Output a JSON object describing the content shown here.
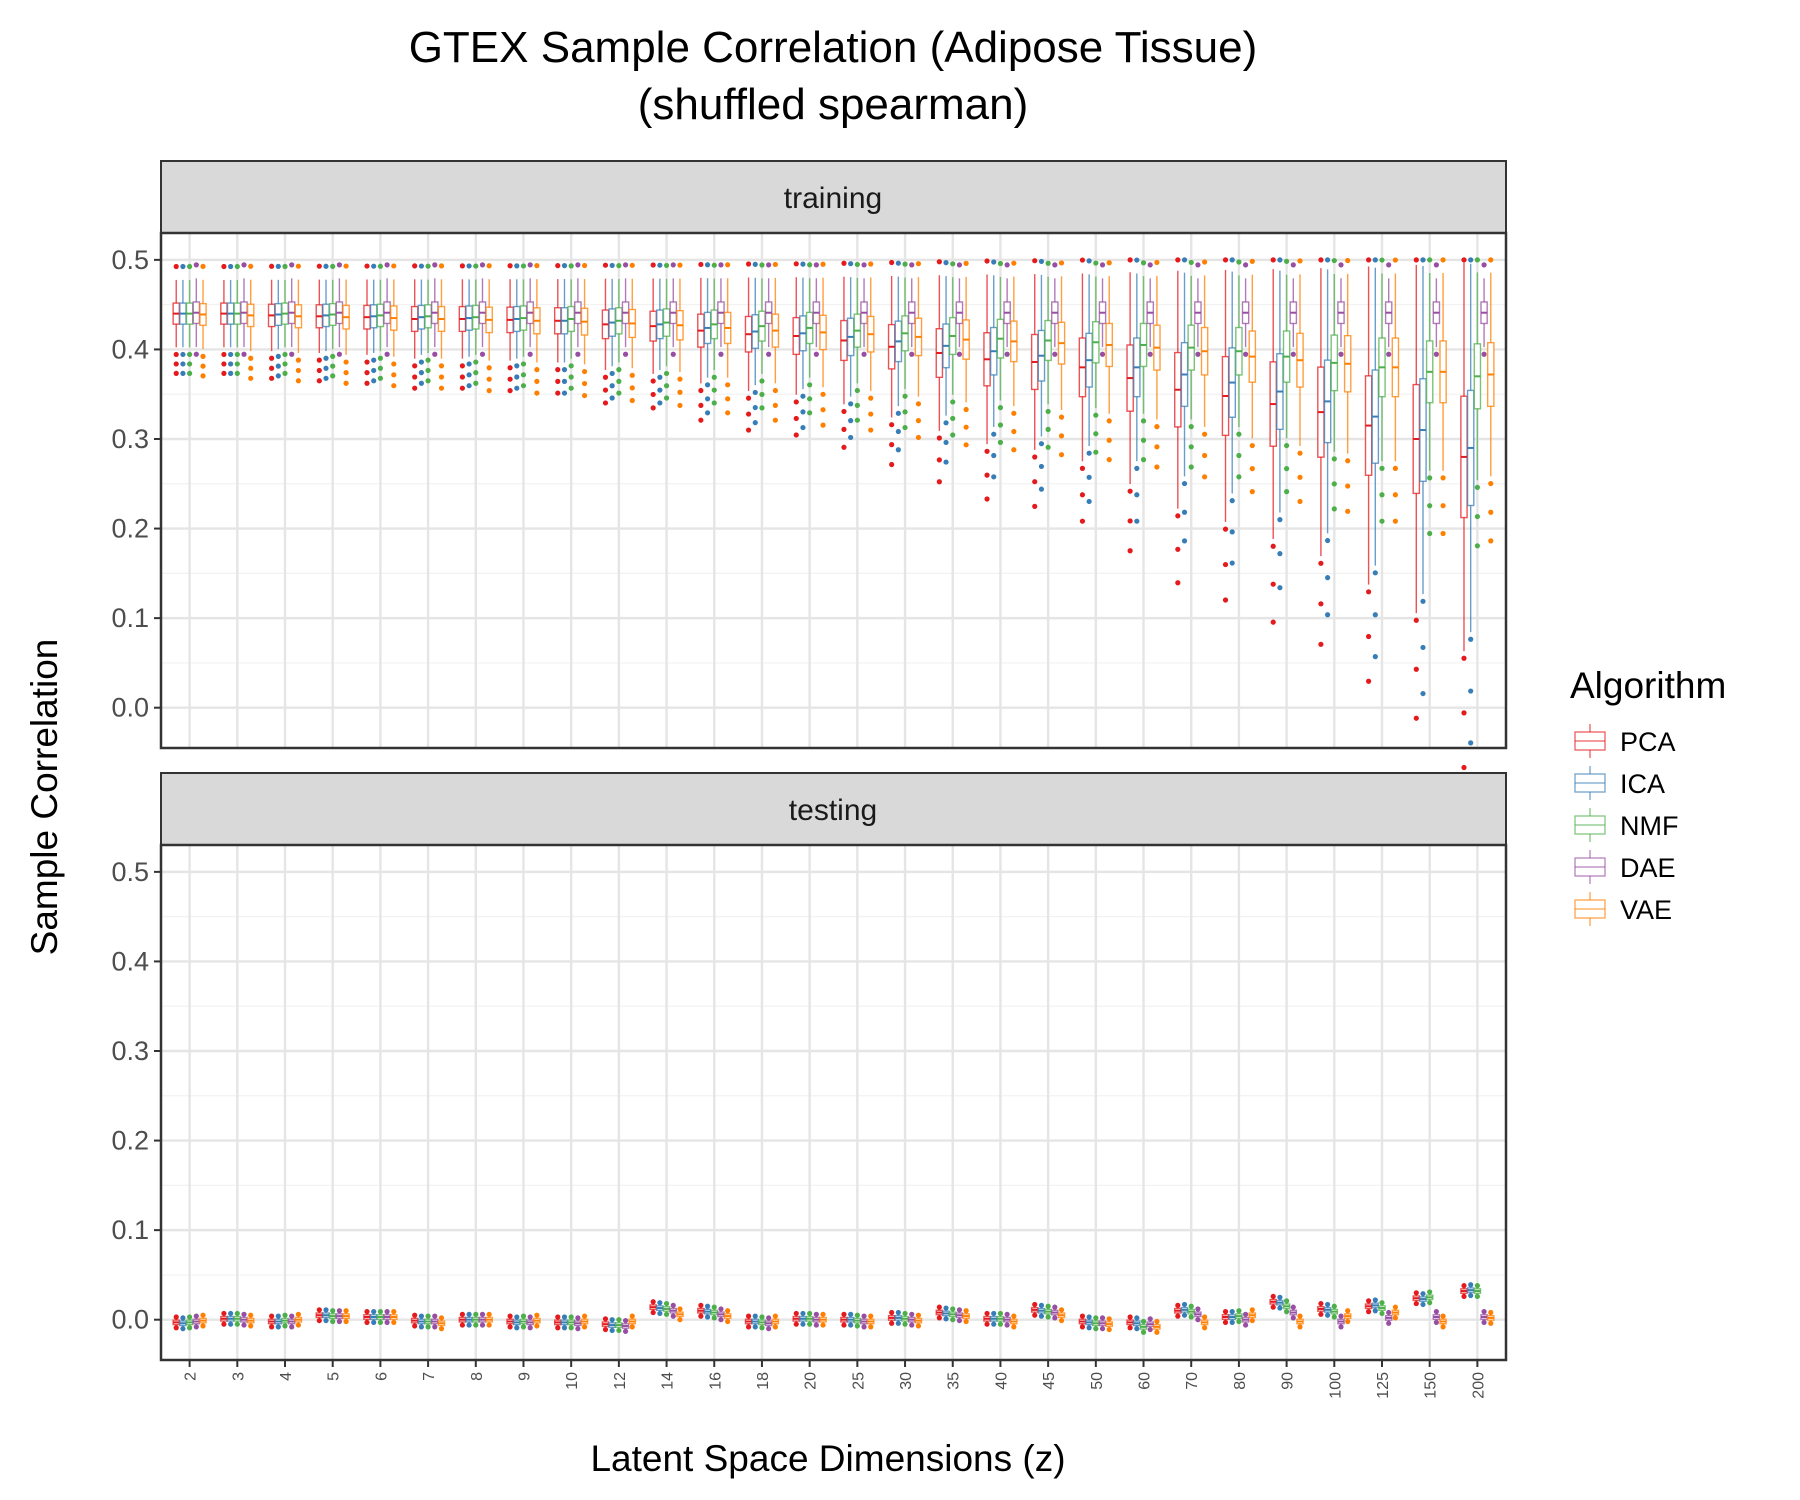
{
  "chart_data": {
    "type": "box",
    "title": "GTEX Sample Correlation (Adipose Tissue)",
    "subtitle": "(shuffled spearman)",
    "xlabel": "Latent Space Dimensions (z)",
    "ylabel": "Sample Correlation",
    "ylim": [
      -0.045,
      0.53
    ],
    "yticks": [
      "0.0",
      "0.1",
      "0.2",
      "0.3",
      "0.4",
      "0.5"
    ],
    "categories": [
      "2",
      "3",
      "4",
      "5",
      "6",
      "7",
      "8",
      "9",
      "10",
      "12",
      "14",
      "16",
      "18",
      "20",
      "25",
      "30",
      "35",
      "40",
      "45",
      "50",
      "60",
      "70",
      "80",
      "90",
      "100",
      "125",
      "150",
      "200"
    ],
    "legend": {
      "title": "Algorithm",
      "position": "right",
      "entries": [
        {
          "name": "PCA",
          "color": "#e41a1c"
        },
        {
          "name": "ICA",
          "color": "#377eb8"
        },
        {
          "name": "NMF",
          "color": "#4daf4a"
        },
        {
          "name": "DAE",
          "color": "#984ea3"
        },
        {
          "name": "VAE",
          "color": "#ff7f00"
        }
      ]
    },
    "grid": true,
    "panels": [
      {
        "label": "training",
        "medians": {
          "PCA": [
            0.44,
            0.44,
            0.438,
            0.437,
            0.436,
            0.434,
            0.434,
            0.433,
            0.432,
            0.428,
            0.426,
            0.421,
            0.417,
            0.415,
            0.41,
            0.403,
            0.396,
            0.389,
            0.386,
            0.38,
            0.368,
            0.355,
            0.348,
            0.339,
            0.33,
            0.315,
            0.3,
            0.28
          ],
          "ICA": [
            0.44,
            0.44,
            0.439,
            0.438,
            0.437,
            0.436,
            0.435,
            0.434,
            0.432,
            0.43,
            0.428,
            0.424,
            0.42,
            0.418,
            0.414,
            0.409,
            0.404,
            0.398,
            0.393,
            0.388,
            0.38,
            0.372,
            0.363,
            0.353,
            0.342,
            0.325,
            0.31,
            0.29
          ],
          "NMF": [
            0.44,
            0.44,
            0.44,
            0.439,
            0.438,
            0.437,
            0.436,
            0.435,
            0.434,
            0.432,
            0.43,
            0.428,
            0.426,
            0.424,
            0.421,
            0.418,
            0.415,
            0.412,
            0.41,
            0.408,
            0.405,
            0.402,
            0.398,
            0.392,
            0.385,
            0.38,
            0.375,
            0.37
          ],
          "DAE": [
            0.441,
            0.441,
            0.441,
            0.441,
            0.441,
            0.441,
            0.441,
            0.441,
            0.441,
            0.441,
            0.441,
            0.441,
            0.441,
            0.441,
            0.441,
            0.441,
            0.441,
            0.441,
            0.441,
            0.441,
            0.441,
            0.441,
            0.441,
            0.441,
            0.441,
            0.441,
            0.441,
            0.441
          ],
          "VAE": [
            0.439,
            0.438,
            0.437,
            0.436,
            0.435,
            0.434,
            0.433,
            0.432,
            0.431,
            0.429,
            0.427,
            0.424,
            0.421,
            0.419,
            0.417,
            0.414,
            0.411,
            0.409,
            0.407,
            0.405,
            0.402,
            0.398,
            0.392,
            0.388,
            0.384,
            0.38,
            0.375,
            0.372
          ]
        }
      },
      {
        "label": "testing",
        "medians": {
          "PCA": [
            -0.003,
            0.001,
            -0.002,
            0.005,
            0.003,
            -0.001,
            0.0,
            -0.002,
            -0.003,
            -0.005,
            0.014,
            0.01,
            -0.002,
            0.001,
            0.0,
            0.002,
            0.008,
            0.001,
            0.011,
            -0.002,
            -0.003,
            0.01,
            0.003,
            0.02,
            0.012,
            0.015,
            0.024,
            0.032
          ],
          "ICA": [
            -0.004,
            0.001,
            -0.002,
            0.005,
            0.003,
            -0.002,
            0.0,
            -0.003,
            -0.003,
            -0.006,
            0.013,
            0.009,
            -0.002,
            0.001,
            0.0,
            0.002,
            0.007,
            0.001,
            0.01,
            -0.003,
            -0.004,
            0.011,
            0.003,
            0.019,
            0.011,
            0.016,
            0.023,
            0.033
          ],
          "NMF": [
            -0.003,
            0.001,
            -0.001,
            0.004,
            0.003,
            -0.002,
            0.0,
            -0.002,
            -0.003,
            -0.006,
            0.012,
            0.008,
            -0.003,
            0.001,
            -0.001,
            0.001,
            0.006,
            0.001,
            0.009,
            -0.004,
            -0.008,
            0.009,
            0.004,
            0.015,
            0.009,
            0.013,
            0.025,
            0.032
          ],
          "DAE": [
            -0.002,
            0.0,
            -0.002,
            0.004,
            0.003,
            -0.002,
            0.0,
            -0.003,
            -0.004,
            -0.007,
            0.01,
            0.006,
            -0.004,
            0.0,
            -0.002,
            0.0,
            0.005,
            0.0,
            0.008,
            -0.004,
            -0.005,
            0.006,
            0.0,
            0.008,
            -0.002,
            0.002,
            0.003,
            0.003
          ],
          "VAE": [
            -0.001,
            -0.001,
            0.0,
            0.004,
            0.003,
            -0.004,
            0.0,
            -0.001,
            -0.002,
            -0.002,
            0.006,
            0.004,
            -0.002,
            0.0,
            -0.002,
            -0.001,
            0.004,
            -0.002,
            0.005,
            -0.005,
            -0.008,
            -0.003,
            0.005,
            -0.002,
            0.004,
            0.008,
            -0.002,
            0.002
          ]
        }
      }
    ]
  }
}
